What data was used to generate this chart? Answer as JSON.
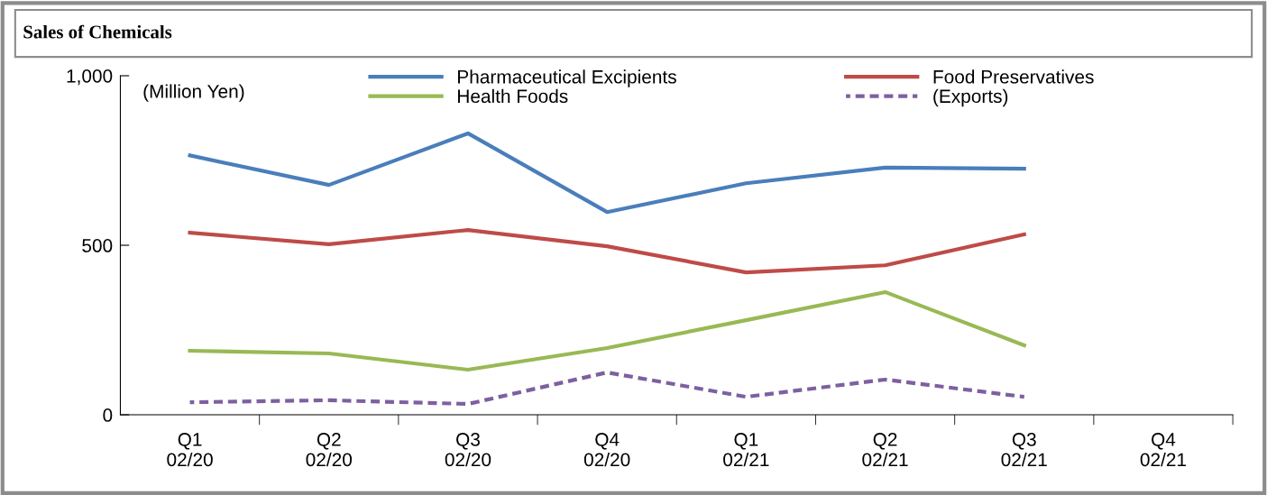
{
  "chart_data": {
    "type": "line",
    "title": "Sales of Chemicals",
    "annotations": [
      "(Million Yen)"
    ],
    "categories": [
      "Q1\n02/20",
      "Q2\n02/20",
      "Q3\n02/20",
      "Q4\n02/20",
      "Q1\n02/21",
      "Q2\n02/21",
      "Q3\n02/21",
      "Q4\n02/21"
    ],
    "series": [
      {
        "name": "Pharmaceutical Excipients",
        "color": "#4a7ebb",
        "values": [
          765,
          678,
          830,
          598,
          683,
          729,
          726,
          null
        ]
      },
      {
        "name": "Food Preservatives",
        "color": "#be4b48",
        "values": [
          537,
          503,
          545,
          497,
          420,
          441,
          532,
          null
        ]
      },
      {
        "name": "Health Foods",
        "color": "#98b954",
        "values": [
          189,
          181,
          133,
          197,
          279,
          362,
          205,
          null
        ]
      },
      {
        "name": "(Exports)",
        "color": "#7d60a0",
        "line_style": "dashed",
        "values": [
          37,
          43,
          32,
          125,
          53,
          104,
          53,
          null
        ]
      }
    ],
    "ylim": [
      0,
      1000
    ],
    "yticks": [
      0,
      500,
      {
        "value": 1000,
        "label": "1,000"
      }
    ],
    "grid": false,
    "legend": "top",
    "marker": "none"
  }
}
